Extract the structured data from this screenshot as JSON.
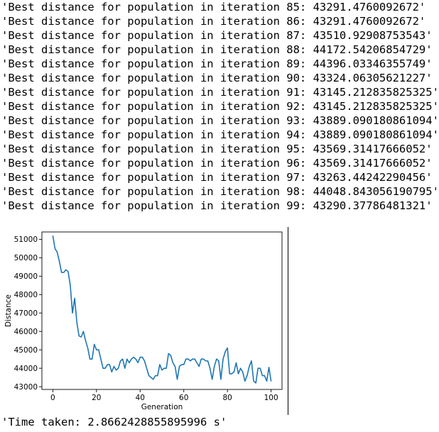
{
  "log": {
    "lines": [
      "'Best distance for population in iteration 85: 43291.4760092672'",
      "'Best distance for population in iteration 86: 43291.4760092672'",
      "'Best distance for population in iteration 87: 43510.92908753543'",
      "'Best distance for population in iteration 88: 44172.54206854729'",
      "'Best distance for population in iteration 89: 44396.03346355749'",
      "'Best distance for population in iteration 90: 43324.06305621227'",
      "'Best distance for population in iteration 91: 43145.212835825325'",
      "'Best distance for population in iteration 92: 43145.212835825325'",
      "'Best distance for population in iteration 93: 43889.090180861094'",
      "'Best distance for population in iteration 94: 43889.090180861094'",
      "'Best distance for population in iteration 95: 43569.31417666052'",
      "'Best distance for population in iteration 96: 43569.31417666052'",
      "'Best distance for population in iteration 97: 43263.44242290456'",
      "'Best distance for population in iteration 98: 44048.843056190795'",
      "'Best distance for population in iteration 99: 43290.37786481321'"
    ]
  },
  "time_taken": "'Time taken: 2.8662428855895996 s'",
  "chart_data": {
    "type": "line",
    "title": "",
    "xlabel": "Generation",
    "ylabel": "Distance",
    "xlim": [
      -5,
      105
    ],
    "ylim": [
      42850,
      51400
    ],
    "xticks": [
      0,
      20,
      40,
      60,
      80,
      100
    ],
    "yticks": [
      43000,
      44000,
      45000,
      46000,
      47000,
      48000,
      49000,
      50000,
      51000
    ],
    "grid": false,
    "series_color": "#1f77b4",
    "series": [
      {
        "x": [
          0,
          1,
          2,
          3,
          4,
          5,
          6,
          7,
          8,
          9,
          10,
          11,
          12,
          13,
          14,
          15,
          16,
          17,
          18,
          19,
          20,
          21,
          22,
          23,
          24,
          25,
          26,
          27,
          28,
          29,
          30,
          31,
          32,
          33,
          34,
          35,
          36,
          37,
          38,
          39,
          40,
          41,
          42,
          43,
          44,
          45,
          46,
          47,
          48,
          49,
          50,
          51,
          52,
          53,
          54,
          55,
          56,
          57,
          58,
          59,
          60,
          61,
          62,
          63,
          64,
          65,
          66,
          67,
          68,
          69,
          70,
          71,
          72,
          73,
          74,
          75,
          76,
          77,
          78,
          79,
          80,
          81,
          82,
          83,
          84,
          85,
          86,
          87,
          88,
          89,
          90,
          91,
          92,
          93,
          94,
          95,
          96,
          97,
          98,
          99,
          100
        ],
        "values": [
          51200,
          50500,
          50300,
          49800,
          49200,
          49200,
          49350,
          49250,
          48500,
          47000,
          47800,
          46500,
          45750,
          45700,
          46000,
          45500,
          45100,
          44500,
          44500,
          45300,
          45000,
          45000,
          44500,
          44000,
          44000,
          44200,
          44200,
          43800,
          44100,
          43900,
          44000,
          44400,
          44500,
          44000,
          44500,
          44300,
          44500,
          44600,
          44500,
          44300,
          44600,
          44600,
          44400,
          44000,
          43600,
          43500,
          43400,
          43600,
          43600,
          44200,
          43900,
          44000,
          44000,
          44800,
          44700,
          44300,
          44100,
          43400,
          44100,
          44200,
          44200,
          44500,
          44500,
          44400,
          44500,
          44500,
          44300,
          44100,
          44500,
          44500,
          44400,
          44400,
          44000,
          43400,
          44100,
          44500,
          44400,
          43400,
          44500,
          44900,
          45100,
          43700,
          43700,
          43800,
          44300,
          43700,
          44000,
          43800,
          43300,
          43600,
          44100,
          44400,
          43300,
          43200,
          44000,
          44000,
          43600,
          43600,
          43300,
          44050,
          43290
        ]
      }
    ]
  }
}
